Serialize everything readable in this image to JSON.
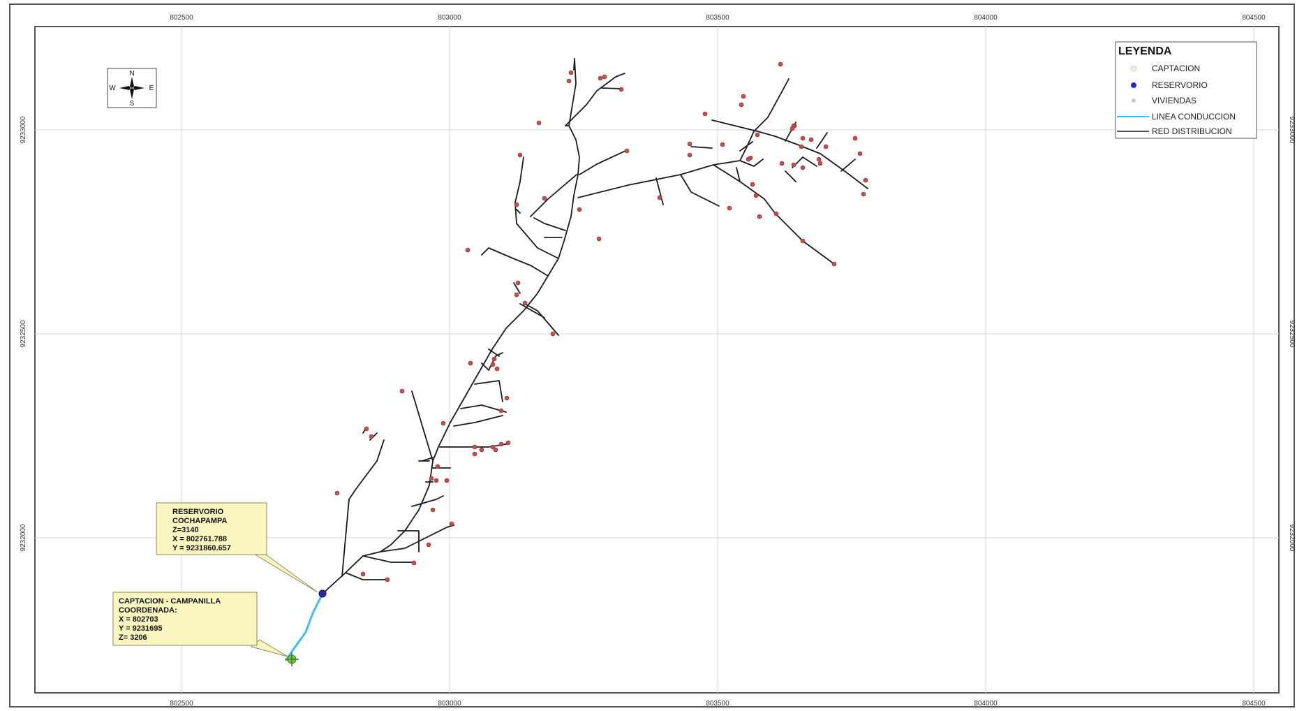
{
  "colors": {
    "grid": "#d4d4d4",
    "frame": "#555555",
    "conduction": "#3cbff0",
    "distribution": "#1a1a1a",
    "house": "#c05050",
    "reservoir": "#2b2bb0",
    "intake": "#78c44a",
    "callout_fill": "#fbf5c0",
    "callout_border": "#8c8c5c"
  },
  "axes": {
    "x_ticks": [
      "802500",
      "803000",
      "803500",
      "804000",
      "804500"
    ],
    "y_ticks": [
      "9233000",
      "9232500",
      "9232000"
    ]
  },
  "compass": {
    "n": "N",
    "s": "S",
    "e": "E",
    "w": "W"
  },
  "legend": {
    "title": "LEYENDA",
    "items": [
      {
        "label": "CAPTACION",
        "symbol": "intake-icon"
      },
      {
        "label": "RESERVORIO",
        "symbol": "reservoir-icon"
      },
      {
        "label": "VIVIENDAS",
        "symbol": "house-icon"
      },
      {
        "label": "LINEA CONDUCCION",
        "symbol": "conduction-line-icon"
      },
      {
        "label": "RED DISTRIBUCION",
        "symbol": "distribution-line-icon"
      }
    ]
  },
  "callouts": {
    "reservoir": [
      "RESERVORIO",
      "COCHAPAMPA",
      "Z=3140",
      "X = 802761.788",
      "Y = 9231860.657"
    ],
    "intake": [
      "CAPTACION - CAMPANILLA",
      "COORDENADA:",
      "X = 802703",
      "Y = 9231695",
      "Z= 3206"
    ]
  }
}
